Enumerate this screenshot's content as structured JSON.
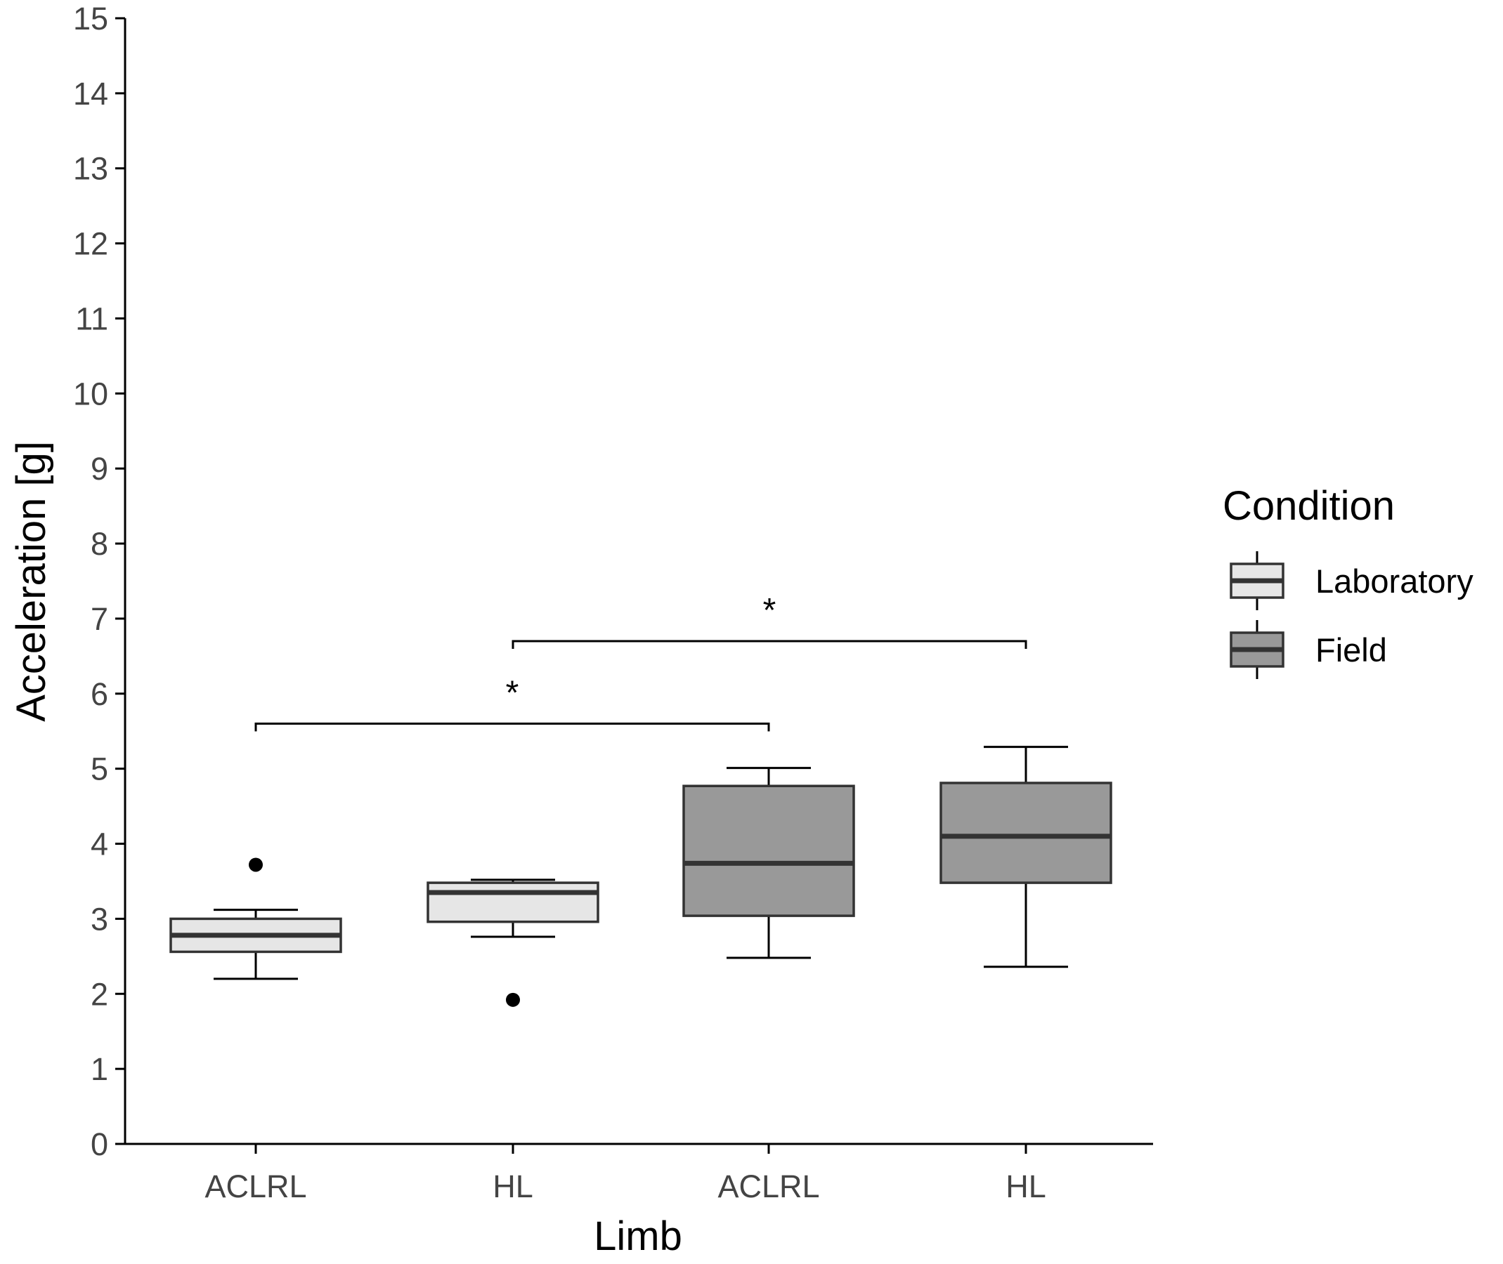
{
  "chart_data": {
    "type": "box",
    "title": "",
    "xlabel": "Limb",
    "ylabel": "Acceleration [g]",
    "ylim": [
      0,
      15
    ],
    "yticks": [
      0,
      1,
      2,
      3,
      4,
      5,
      6,
      7,
      8,
      9,
      10,
      11,
      12,
      13,
      14,
      15
    ],
    "categories": [
      "ACLRL",
      "HL",
      "ACLRL",
      "HL"
    ],
    "legend": {
      "title": "Condition",
      "position": "right",
      "entries": [
        {
          "name": "Laboratory",
          "color": "#e6e6e6"
        },
        {
          "name": "Field",
          "color": "#999999"
        }
      ]
    },
    "boxes": [
      {
        "category": "ACLRL",
        "condition": "Laboratory",
        "whisker_low": 2.2,
        "q1": 2.56,
        "median": 2.78,
        "q3": 3.0,
        "whisker_high": 3.12,
        "outliers": [
          3.72
        ]
      },
      {
        "category": "HL",
        "condition": "Laboratory",
        "whisker_low": 2.76,
        "q1": 2.96,
        "median": 3.35,
        "q3": 3.48,
        "whisker_high": 3.52,
        "outliers": [
          1.92
        ]
      },
      {
        "category": "ACLRL",
        "condition": "Field",
        "whisker_low": 2.48,
        "q1": 3.04,
        "median": 3.74,
        "q3": 4.77,
        "whisker_high": 5.01,
        "outliers": []
      },
      {
        "category": "HL",
        "condition": "Field",
        "whisker_low": 2.36,
        "q1": 3.48,
        "median": 4.1,
        "q3": 4.81,
        "whisker_high": 5.29,
        "outliers": []
      }
    ],
    "significance": [
      {
        "from": 0,
        "to": 2,
        "y": 5.6,
        "label": "*"
      },
      {
        "from": 1,
        "to": 3,
        "y": 6.7,
        "label": "*"
      }
    ]
  }
}
